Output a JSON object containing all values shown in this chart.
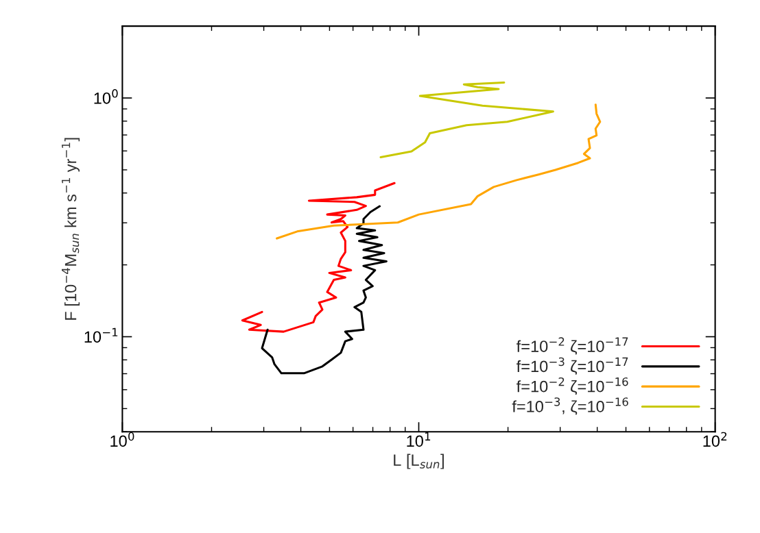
{
  "chart_data": {
    "type": "line",
    "xlabel": "L [L$_{sun}$]",
    "ylabel": "F [10$^{−4}$M$_{sun}$ km s$^{−1}$ yr$^{−1}$]",
    "log": "xy",
    "grid": false,
    "legend": "bottom right",
    "marker": "none",
    "line_style": "solid",
    "xlim": [
      1,
      100
    ],
    "ylim": [
      0.04,
      2
    ],
    "xticks": [
      {
        "value": 1,
        "label": "10$^{0}$"
      },
      {
        "value": 10,
        "label": "10$^{1}$"
      },
      {
        "value": 100,
        "label": "10$^{2}$"
      }
    ],
    "yticks": [
      {
        "value": 0.1,
        "label": "10$^{−1}$"
      },
      {
        "value": 1,
        "label": "10$^{0}$"
      }
    ],
    "series": [
      {
        "name": "f=10$^{−2}$ ζ=10$^{−17}$",
        "color": "#ff0000",
        "x": [
          2.96,
          2.54,
          2.93,
          2.68,
          3.5,
          4.41,
          4.49,
          4.73,
          4.61,
          5.26,
          4.91,
          5.17,
          5.65,
          4.99,
          5.91,
          5.36,
          5.46,
          5.65,
          5.65,
          5.46,
          5.75,
          5.56,
          5.08,
          5.46,
          5.65,
          4.91,
          6.18,
          6.63,
          6.07,
          4.26,
          6.18,
          7.12,
          7.12,
          8.28
        ],
        "values": [
          0.127,
          0.117,
          0.112,
          0.107,
          0.105,
          0.115,
          0.122,
          0.13,
          0.139,
          0.146,
          0.154,
          0.173,
          0.177,
          0.185,
          0.19,
          0.198,
          0.212,
          0.226,
          0.252,
          0.273,
          0.288,
          0.305,
          0.301,
          0.311,
          0.322,
          0.325,
          0.34,
          0.353,
          0.367,
          0.371,
          0.384,
          0.393,
          0.41,
          0.44
        ]
      },
      {
        "name": "f=10$^{−3}$ ζ=10$^{−17}$",
        "color": "#000000",
        "x": [
          3.09,
          2.96,
          3.2,
          3.26,
          3.44,
          4.1,
          4.73,
          5.08,
          5.46,
          5.65,
          5.96,
          5.65,
          6.51,
          6.4,
          6.07,
          6.51,
          6.63,
          6.51,
          6.99,
          6.63,
          7.12,
          6.51,
          7.78,
          6.51,
          7.64,
          6.51,
          7.51,
          6.29,
          7.25,
          6.18,
          7.12,
          6.18,
          6.51,
          6.51,
          6.87,
          7.38
        ],
        "values": [
          0.107,
          0.0895,
          0.082,
          0.0767,
          0.0703,
          0.0703,
          0.0751,
          0.0802,
          0.0857,
          0.0957,
          0.0979,
          0.105,
          0.107,
          0.127,
          0.133,
          0.139,
          0.146,
          0.156,
          0.163,
          0.173,
          0.19,
          0.198,
          0.207,
          0.214,
          0.224,
          0.231,
          0.242,
          0.252,
          0.261,
          0.27,
          0.279,
          0.285,
          0.298,
          0.311,
          0.333,
          0.352
        ]
      },
      {
        "name": "f=10$^{−2}$ ζ=10$^{−16}$",
        "color": "#ffa500",
        "x": [
          3.32,
          3.89,
          5.17,
          8.5,
          10.0,
          15.0,
          15.8,
          17.9,
          21.4,
          25.5,
          28.9,
          34.5,
          37.8,
          36.1,
          37.8,
          37.4,
          39.8,
          39.5,
          40.9,
          39.8,
          39.5
        ],
        "values": [
          0.258,
          0.276,
          0.292,
          0.301,
          0.325,
          0.359,
          0.388,
          0.424,
          0.453,
          0.479,
          0.5,
          0.535,
          0.559,
          0.583,
          0.617,
          0.673,
          0.697,
          0.744,
          0.795,
          0.859,
          0.938
        ]
      },
      {
        "name": "f=10$^{−3}$, ζ=10$^{−16}$",
        "color": "#c8c800",
        "x": [
          7.44,
          9.45,
          10.5,
          10.9,
          14.5,
          19.9,
          28.4,
          16.4,
          10.1,
          18.6,
          15.8,
          14.2,
          19.4
        ],
        "values": [
          0.565,
          0.597,
          0.652,
          0.712,
          0.769,
          0.795,
          0.878,
          0.928,
          1.02,
          1.09,
          1.11,
          1.14,
          1.16
        ]
      }
    ]
  }
}
